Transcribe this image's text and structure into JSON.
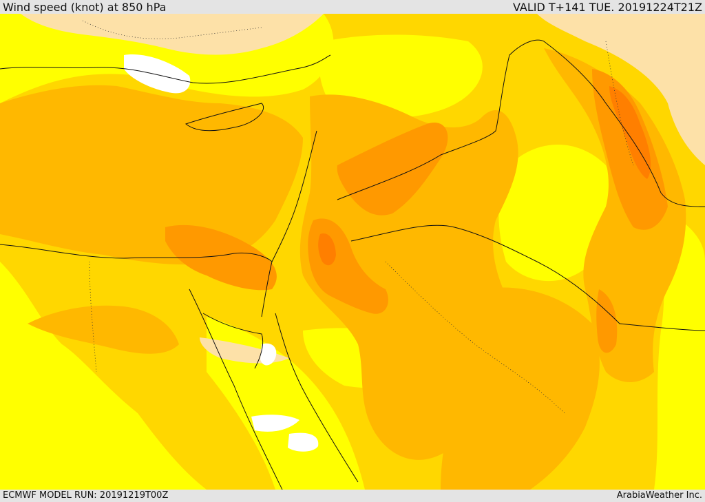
{
  "header": {
    "title": "Wind speed (knot) at 850 hPa",
    "valid_time": "VALID T+141 TUE. 20191224T21Z"
  },
  "footer": {
    "model_run": "ECMWF MODEL RUN: 20191219T00Z",
    "credit": "ArabiaWeather Inc."
  },
  "map": {
    "field": "wind speed at 850 hPa",
    "units": "knot",
    "fill_levels_colors": [
      "#ffffff",
      "#fde1a8",
      "#ffff00",
      "#ffd700",
      "#ffb800",
      "#ff9900",
      "#ff7f00"
    ],
    "border_color": "#111111"
  }
}
